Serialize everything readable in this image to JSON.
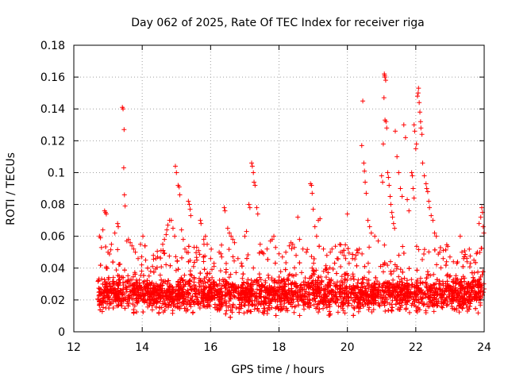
{
  "chart_data": {
    "type": "scatter",
    "title": "Day 062 of 2025, Rate Of TEC Index for receiver riga",
    "xlabel": "GPS time / hours",
    "ylabel": "ROTI / TECUs",
    "xlim": [
      12,
      24
    ],
    "ylim": [
      0,
      0.18
    ],
    "x_ticks": [
      "12",
      "14",
      "16",
      "18",
      "20",
      "22",
      "24"
    ],
    "y_ticks": [
      "0",
      "0.02",
      "0.04",
      "0.06",
      "0.08",
      "0.1",
      "0.12",
      "0.14",
      "0.16",
      "0.18"
    ],
    "grid": true,
    "marker": "+",
    "color": "#ff0000",
    "series": [
      {
        "name": "ROTI",
        "baseline_band": [
          0.008,
          0.04
        ],
        "baseline_x_range": [
          12.7,
          24.0
        ],
        "points": [
          [
            12.75,
            0.06
          ],
          [
            12.78,
            0.059
          ],
          [
            12.85,
            0.064
          ],
          [
            12.9,
            0.076
          ],
          [
            12.93,
            0.075
          ],
          [
            12.95,
            0.074
          ],
          [
            13.0,
            0.05
          ],
          [
            13.1,
            0.055
          ],
          [
            13.2,
            0.062
          ],
          [
            13.28,
            0.068
          ],
          [
            13.3,
            0.066
          ],
          [
            13.42,
            0.141
          ],
          [
            13.44,
            0.14
          ],
          [
            13.47,
            0.127
          ],
          [
            13.46,
            0.103
          ],
          [
            13.48,
            0.086
          ],
          [
            13.5,
            0.079
          ],
          [
            13.55,
            0.057
          ],
          [
            13.6,
            0.058
          ],
          [
            13.65,
            0.056
          ],
          [
            13.7,
            0.054
          ],
          [
            13.75,
            0.052
          ],
          [
            13.8,
            0.05
          ],
          [
            13.88,
            0.046
          ],
          [
            13.95,
            0.055
          ],
          [
            14.02,
            0.06
          ],
          [
            14.1,
            0.045
          ],
          [
            14.2,
            0.035
          ],
          [
            14.3,
            0.041
          ],
          [
            14.4,
            0.046
          ],
          [
            14.55,
            0.051
          ],
          [
            14.6,
            0.055
          ],
          [
            14.65,
            0.058
          ],
          [
            14.7,
            0.061
          ],
          [
            14.72,
            0.064
          ],
          [
            14.75,
            0.067
          ],
          [
            14.8,
            0.07
          ],
          [
            14.85,
            0.07
          ],
          [
            14.9,
            0.065
          ],
          [
            14.95,
            0.06
          ],
          [
            14.97,
            0.104
          ],
          [
            15.0,
            0.1
          ],
          [
            15.05,
            0.092
          ],
          [
            15.08,
            0.091
          ],
          [
            15.1,
            0.086
          ],
          [
            15.15,
            0.064
          ],
          [
            15.2,
            0.058
          ],
          [
            15.25,
            0.052
          ],
          [
            15.3,
            0.05
          ],
          [
            15.35,
            0.082
          ],
          [
            15.38,
            0.08
          ],
          [
            15.4,
            0.077
          ],
          [
            15.42,
            0.073
          ],
          [
            15.5,
            0.041
          ],
          [
            15.6,
            0.045
          ],
          [
            15.65,
            0.051
          ],
          [
            15.7,
            0.07
          ],
          [
            15.72,
            0.068
          ],
          [
            15.8,
            0.058
          ],
          [
            15.85,
            0.06
          ],
          [
            15.9,
            0.055
          ],
          [
            16.0,
            0.046
          ],
          [
            16.1,
            0.043
          ],
          [
            16.25,
            0.05
          ],
          [
            16.3,
            0.049
          ],
          [
            16.4,
            0.078
          ],
          [
            16.42,
            0.076
          ],
          [
            16.5,
            0.065
          ],
          [
            16.55,
            0.062
          ],
          [
            16.6,
            0.06
          ],
          [
            16.65,
            0.058
          ],
          [
            16.7,
            0.056
          ],
          [
            16.8,
            0.046
          ],
          [
            16.9,
            0.043
          ],
          [
            17.0,
            0.06
          ],
          [
            17.05,
            0.063
          ],
          [
            17.12,
            0.08
          ],
          [
            17.15,
            0.078
          ],
          [
            17.2,
            0.106
          ],
          [
            17.22,
            0.104
          ],
          [
            17.25,
            0.1
          ],
          [
            17.27,
            0.094
          ],
          [
            17.3,
            0.092
          ],
          [
            17.35,
            0.078
          ],
          [
            17.38,
            0.074
          ],
          [
            17.45,
            0.055
          ],
          [
            17.55,
            0.049
          ],
          [
            17.65,
            0.052
          ],
          [
            17.75,
            0.057
          ],
          [
            17.8,
            0.058
          ],
          [
            17.85,
            0.06
          ],
          [
            17.9,
            0.053
          ],
          [
            18.0,
            0.049
          ],
          [
            18.1,
            0.047
          ],
          [
            18.2,
            0.05
          ],
          [
            18.3,
            0.054
          ],
          [
            18.35,
            0.056
          ],
          [
            18.4,
            0.055
          ],
          [
            18.45,
            0.053
          ],
          [
            18.5,
            0.048
          ],
          [
            18.55,
            0.072
          ],
          [
            18.6,
            0.058
          ],
          [
            18.7,
            0.052
          ],
          [
            18.8,
            0.05
          ],
          [
            18.92,
            0.093
          ],
          [
            18.95,
            0.092
          ],
          [
            18.97,
            0.087
          ],
          [
            19.0,
            0.077
          ],
          [
            19.05,
            0.066
          ],
          [
            19.1,
            0.06
          ],
          [
            19.15,
            0.07
          ],
          [
            19.2,
            0.071
          ],
          [
            19.3,
            0.052
          ],
          [
            19.4,
            0.048
          ],
          [
            19.5,
            0.05
          ],
          [
            19.55,
            0.052
          ],
          [
            19.7,
            0.046
          ],
          [
            19.8,
            0.05
          ],
          [
            19.85,
            0.05
          ],
          [
            19.9,
            0.048
          ],
          [
            19.95,
            0.046
          ],
          [
            20.0,
            0.074
          ],
          [
            20.05,
            0.043
          ],
          [
            20.15,
            0.046
          ],
          [
            20.25,
            0.048
          ],
          [
            20.35,
            0.052
          ],
          [
            20.42,
            0.117
          ],
          [
            20.45,
            0.145
          ],
          [
            20.48,
            0.106
          ],
          [
            20.5,
            0.101
          ],
          [
            20.52,
            0.094
          ],
          [
            20.55,
            0.087
          ],
          [
            20.6,
            0.07
          ],
          [
            20.65,
            0.066
          ],
          [
            20.7,
            0.062
          ],
          [
            20.8,
            0.06
          ],
          [
            20.9,
            0.057
          ],
          [
            21.0,
            0.098
          ],
          [
            21.03,
            0.094
          ],
          [
            21.05,
            0.118
          ],
          [
            21.07,
            0.147
          ],
          [
            21.08,
            0.162
          ],
          [
            21.09,
            0.161
          ],
          [
            21.1,
            0.16
          ],
          [
            21.12,
            0.158
          ],
          [
            21.1,
            0.133
          ],
          [
            21.13,
            0.132
          ],
          [
            21.15,
            0.128
          ],
          [
            21.18,
            0.1
          ],
          [
            21.2,
            0.097
          ],
          [
            21.22,
            0.092
          ],
          [
            21.25,
            0.085
          ],
          [
            21.27,
            0.08
          ],
          [
            21.3,
            0.075
          ],
          [
            21.32,
            0.072
          ],
          [
            21.35,
            0.068
          ],
          [
            21.38,
            0.065
          ],
          [
            21.4,
            0.126
          ],
          [
            21.45,
            0.11
          ],
          [
            21.5,
            0.1
          ],
          [
            21.55,
            0.09
          ],
          [
            21.6,
            0.085
          ],
          [
            21.65,
            0.13
          ],
          [
            21.7,
            0.122
          ],
          [
            21.75,
            0.083
          ],
          [
            21.8,
            0.076
          ],
          [
            21.88,
            0.1
          ],
          [
            21.9,
            0.098
          ],
          [
            21.92,
            0.09
          ],
          [
            21.95,
            0.084
          ],
          [
            21.95,
            0.13
          ],
          [
            21.97,
            0.126
          ],
          [
            22.0,
            0.115
          ],
          [
            22.02,
            0.118
          ],
          [
            22.05,
            0.148
          ],
          [
            22.07,
            0.15
          ],
          [
            22.08,
            0.153
          ],
          [
            22.1,
            0.144
          ],
          [
            22.12,
            0.138
          ],
          [
            22.14,
            0.132
          ],
          [
            22.15,
            0.128
          ],
          [
            22.18,
            0.124
          ],
          [
            22.2,
            0.106
          ],
          [
            22.25,
            0.098
          ],
          [
            22.3,
            0.093
          ],
          [
            22.32,
            0.09
          ],
          [
            22.35,
            0.088
          ],
          [
            22.38,
            0.082
          ],
          [
            22.4,
            0.078
          ],
          [
            22.45,
            0.073
          ],
          [
            22.5,
            0.07
          ],
          [
            22.55,
            0.062
          ],
          [
            22.6,
            0.06
          ],
          [
            22.7,
            0.05
          ],
          [
            22.8,
            0.046
          ],
          [
            22.9,
            0.044
          ],
          [
            23.0,
            0.047
          ],
          [
            23.1,
            0.044
          ],
          [
            23.2,
            0.043
          ],
          [
            23.3,
            0.06
          ],
          [
            23.35,
            0.05
          ],
          [
            23.4,
            0.046
          ],
          [
            23.5,
            0.044
          ],
          [
            23.6,
            0.043
          ],
          [
            23.7,
            0.045
          ],
          [
            23.8,
            0.05
          ],
          [
            23.85,
            0.068
          ],
          [
            23.9,
            0.072
          ],
          [
            23.93,
            0.078
          ],
          [
            23.95,
            0.075
          ],
          [
            23.97,
            0.066
          ],
          [
            23.99,
            0.062
          ]
        ]
      }
    ]
  }
}
